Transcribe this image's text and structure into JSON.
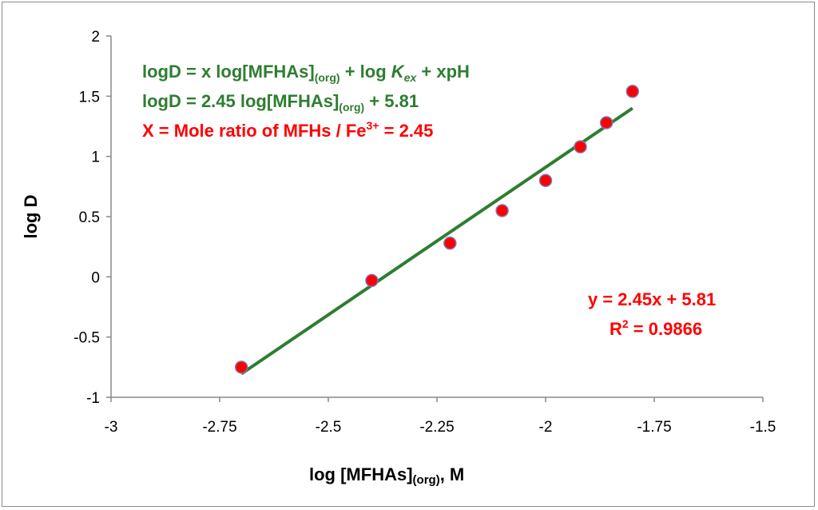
{
  "chart_data": {
    "type": "scatter",
    "xlabel_main": "log [MFHAs]",
    "xlabel_sub": "(org)",
    "xlabel_tail": ",  M",
    "ylabel": "log D",
    "xlim": [
      -3,
      -1.5
    ],
    "ylim": [
      -1,
      2
    ],
    "xticks": [
      "-3",
      "-2.75",
      "-2.5",
      "-2.25",
      "-2",
      "-1.75",
      "-1.5"
    ],
    "xtick_values": [
      -3,
      -2.75,
      -2.5,
      -2.25,
      -2,
      -1.75,
      -1.5
    ],
    "yticks": [
      "2",
      "1.5",
      "1",
      "0.5",
      "0",
      "-0.5",
      "-1"
    ],
    "ytick_values": [
      2,
      1.5,
      1,
      0.5,
      0,
      -0.5,
      -1
    ],
    "grid": false,
    "points": {
      "x": [
        -2.7,
        -2.4,
        -2.22,
        -2.1,
        -2.0,
        -1.92,
        -1.86,
        -1.8
      ],
      "y": [
        -0.75,
        -0.03,
        0.28,
        0.55,
        0.8,
        1.08,
        1.28,
        1.54
      ]
    },
    "trendline": {
      "slope": 2.45,
      "intercept": 5.81,
      "x_range": [
        -2.7,
        -1.8
      ]
    },
    "colors": {
      "points": "#ff0000",
      "point_edge": "#7a7ab8",
      "line": "#2e7d32",
      "annotation_green": "#2e7d32",
      "annotation_red": "#ff0000"
    },
    "annotations": {
      "eq1": {
        "a": "logD = x log[MFHAs]",
        "sub1": "(org)",
        "b": " + log ",
        "k": "K",
        "ksub": "ex",
        "c": " + xpH"
      },
      "eq2": {
        "a": "logD = 2.45 log[MFHAs]",
        "sub1": "(org)",
        "b": " + 5.81"
      },
      "eq3": {
        "a": "X = Mole ratio of MFHs / Fe",
        "sup": "3+",
        "b": "  = 2.45"
      },
      "fit": {
        "line1": "y = 2.45x + 5.81",
        "r": "R",
        "rsup": "2",
        "r_rest": " = 0.9866"
      }
    }
  }
}
